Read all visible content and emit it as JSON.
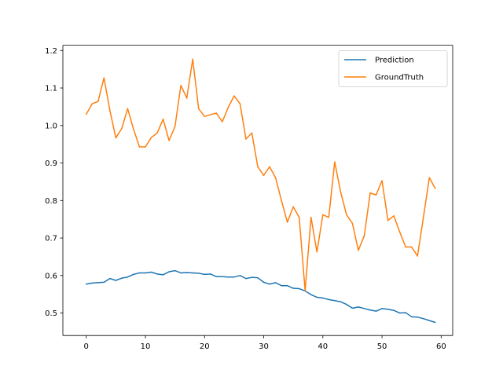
{
  "chart_data": {
    "type": "line",
    "title": "",
    "xlabel": "",
    "ylabel": "",
    "xlim": [
      -3.95,
      61.95
    ],
    "ylim": [
      0.44,
      1.214
    ],
    "grid": false,
    "legend_placement": "top-right",
    "x_ticks": [
      0,
      10,
      20,
      30,
      40,
      50,
      60
    ],
    "y_ticks": [
      0.5,
      0.6,
      0.7,
      0.8,
      0.9,
      1.0,
      1.1,
      1.2
    ],
    "x_tick_labels": [
      "0",
      "10",
      "20",
      "30",
      "40",
      "50",
      "60"
    ],
    "y_tick_labels": [
      "0.5",
      "0.6",
      "0.7",
      "0.8",
      "0.9",
      "1.0",
      "1.1",
      "1.2"
    ],
    "x": [
      0,
      1,
      2,
      3,
      4,
      5,
      6,
      7,
      8,
      9,
      10,
      11,
      12,
      13,
      14,
      15,
      16,
      17,
      18,
      19,
      20,
      21,
      22,
      23,
      24,
      25,
      26,
      27,
      28,
      29,
      30,
      31,
      32,
      33,
      34,
      35,
      36,
      37,
      38,
      39,
      40,
      41,
      42,
      43,
      44,
      45,
      46,
      47,
      48,
      49,
      50,
      51,
      52,
      53,
      54,
      55,
      56,
      57,
      58,
      59
    ],
    "series": [
      {
        "name": "Prediction",
        "color": "#1f77b4",
        "values": [
          0.577,
          0.58,
          0.581,
          0.582,
          0.592,
          0.587,
          0.593,
          0.596,
          0.603,
          0.607,
          0.607,
          0.609,
          0.604,
          0.602,
          0.61,
          0.613,
          0.607,
          0.608,
          0.607,
          0.606,
          0.603,
          0.604,
          0.597,
          0.597,
          0.596,
          0.596,
          0.6,
          0.592,
          0.595,
          0.594,
          0.582,
          0.577,
          0.581,
          0.573,
          0.573,
          0.566,
          0.565,
          0.559,
          0.549,
          0.542,
          0.54,
          0.536,
          0.533,
          0.53,
          0.523,
          0.513,
          0.516,
          0.512,
          0.508,
          0.505,
          0.512,
          0.51,
          0.507,
          0.5,
          0.501,
          0.49,
          0.489,
          0.485,
          0.48,
          0.475
        ]
      },
      {
        "name": "GroundTruth",
        "color": "#ff7f0e",
        "values": [
          1.03,
          1.058,
          1.064,
          1.127,
          1.04,
          0.967,
          0.992,
          1.045,
          0.99,
          0.943,
          0.943,
          0.968,
          0.98,
          1.017,
          0.96,
          0.997,
          1.107,
          1.073,
          1.177,
          1.045,
          1.024,
          1.029,
          1.033,
          1.01,
          1.048,
          1.079,
          1.058,
          0.964,
          0.98,
          0.89,
          0.867,
          0.89,
          0.861,
          0.8,
          0.742,
          0.783,
          0.755,
          0.56,
          0.755,
          0.663,
          0.762,
          0.755,
          0.903,
          0.823,
          0.762,
          0.739,
          0.667,
          0.706,
          0.82,
          0.815,
          0.853,
          0.747,
          0.759,
          0.716,
          0.676,
          0.676,
          0.652,
          0.755,
          0.861,
          0.832
        ]
      }
    ]
  }
}
